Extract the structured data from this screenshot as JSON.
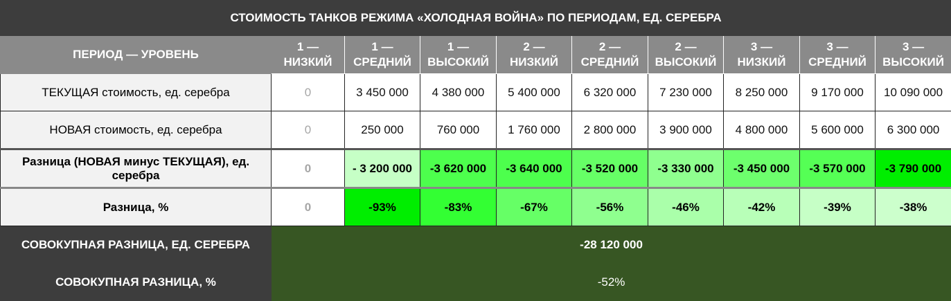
{
  "title": "СТОИМОСТЬ ТАНКОВ РЕЖИМА «ХОЛОДНАЯ ВОЙНА» ПО ПЕРИОДАМ, ЕД. СЕРЕБРА",
  "header": {
    "label": "ПЕРИОД — УРОВЕНЬ",
    "columns": [
      [
        "1 —",
        "НИЗКИЙ"
      ],
      [
        "1 —",
        "СРЕДНИЙ"
      ],
      [
        "1 —",
        "ВЫСОКИЙ"
      ],
      [
        "2 —",
        "НИЗКИЙ"
      ],
      [
        "2 —",
        "СРЕДНИЙ"
      ],
      [
        "2 —",
        "ВЫСОКИЙ"
      ],
      [
        "3 —",
        "НИЗКИЙ"
      ],
      [
        "3 —",
        "СРЕДНИЙ"
      ],
      [
        "3 —",
        "ВЫСОКИЙ"
      ]
    ]
  },
  "rows": {
    "current": {
      "label": "ТЕКУЩАЯ стоимость, ед. серебра",
      "values": [
        "0",
        "3 450 000",
        "4 380 000",
        "5 400 000",
        "6 320 000",
        "7 230 000",
        "8 250 000",
        "9 170 000",
        "10 090 000"
      ]
    },
    "new": {
      "label": "НОВАЯ стоимость, ед. серебра",
      "values": [
        "0",
        "250 000",
        "760 000",
        "1 760 000",
        "2 800 000",
        "3 900 000",
        "4 800 000",
        "5 600 000",
        "6 300 000"
      ]
    },
    "diff": {
      "label": "Разница (НОВАЯ минус ТЕКУЩАЯ), ед. серебра",
      "values": [
        "0",
        "- 3 200 000",
        "-3 620 000",
        "-3 640 000",
        "-3 520 000",
        "-3 330 000",
        "-3 450 000",
        "-3 570 000",
        "-3 790 000"
      ],
      "colors": [
        "#ffffff",
        "#c6ffc6",
        "#4dff4d",
        "#4dff4d",
        "#66ff66",
        "#8fff8f",
        "#6dff6d",
        "#55ff55",
        "#00ee00"
      ]
    },
    "diff_pct": {
      "label": "Разница, %",
      "values": [
        "0",
        "-93%",
        "-83%",
        "-67%",
        "-56%",
        "-46%",
        "-42%",
        "-39%",
        "-38%"
      ],
      "colors": [
        "#ffffff",
        "#00ee00",
        "#33ff33",
        "#66ff66",
        "#8fff8f",
        "#aaffaa",
        "#b8ffb8",
        "#c6ffc6",
        "#ccffcc"
      ]
    }
  },
  "totals": {
    "silver": {
      "label": "СОВОКУПНАЯ РАЗНИЦА, ЕД. СЕРЕБРА",
      "value": "-28 120 000"
    },
    "pct": {
      "label": "СОВОКУПНАЯ РАЗНИЦА, %",
      "value": "-52%"
    }
  }
}
